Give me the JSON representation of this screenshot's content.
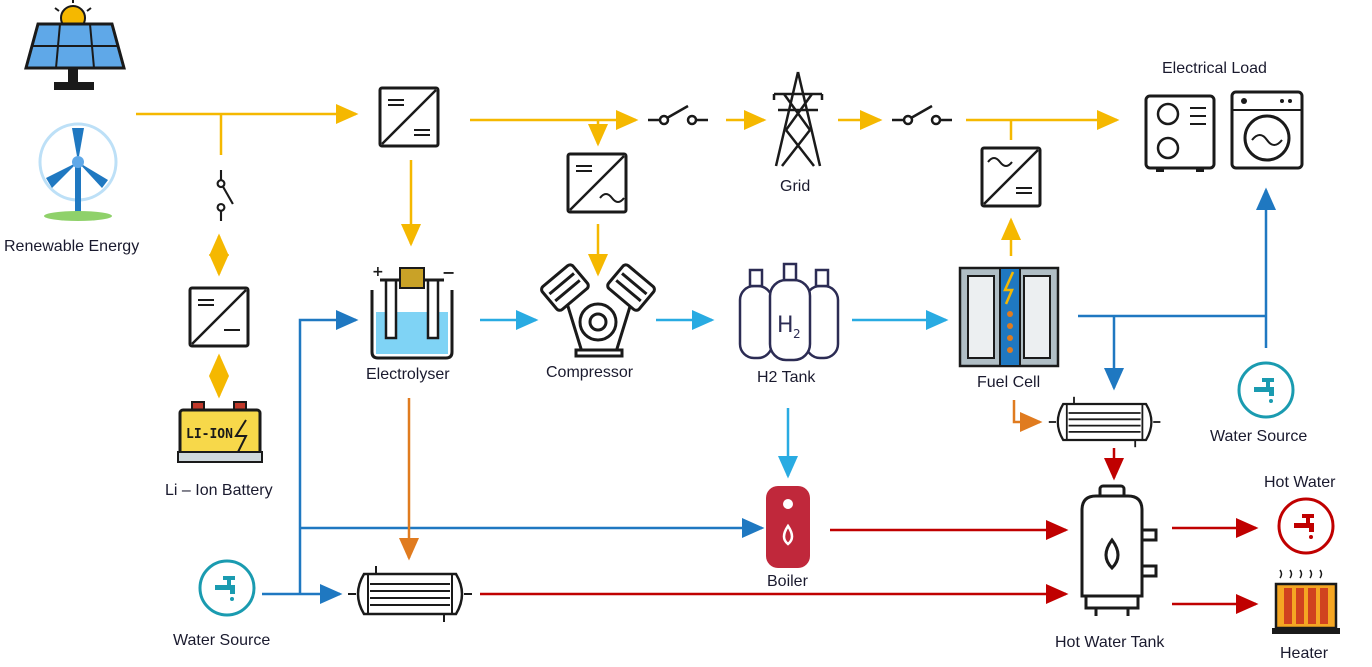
{
  "labels": {
    "renewable": "Renewable Energy",
    "battery": "Li – Ion Battery",
    "electrolyser": "Electrolyser",
    "compressor": "Compressor",
    "h2tank": "H2 Tank",
    "grid": "Grid",
    "fuelcell": "Fuel Cell",
    "load": "Electrical Load",
    "water_source_left": "Water Source",
    "water_source_right": "Water Source",
    "boiler": "Boiler",
    "hot_water_tank": "Hot Water Tank",
    "hot_water": "Hot Water",
    "heater": "Heater",
    "battery_text": "LI-ION",
    "h2_glyph": "H",
    "h2_sub": "2"
  },
  "colors": {
    "power": "#f5b800",
    "hydrogen": "#29abe2",
    "water": "#1f78c1",
    "heat": "#c00000",
    "waste_heat": "#e07b1f",
    "outline": "#1a1a1a",
    "faucet": "#1a9bb0"
  },
  "icons": [
    "solar-panel-icon",
    "wind-turbine-icon",
    "switch-icon",
    "dc-dc-converter-icon",
    "battery-icon",
    "electrolyser-icon",
    "compressor-icon",
    "hydrogen-tank-icon",
    "grid-tower-icon",
    "fuel-cell-icon",
    "inverter-icon",
    "heat-pump-icon",
    "washing-machine-icon",
    "faucet-icon",
    "heat-exchanger-icon",
    "boiler-icon",
    "water-heater-icon",
    "radiator-icon"
  ]
}
